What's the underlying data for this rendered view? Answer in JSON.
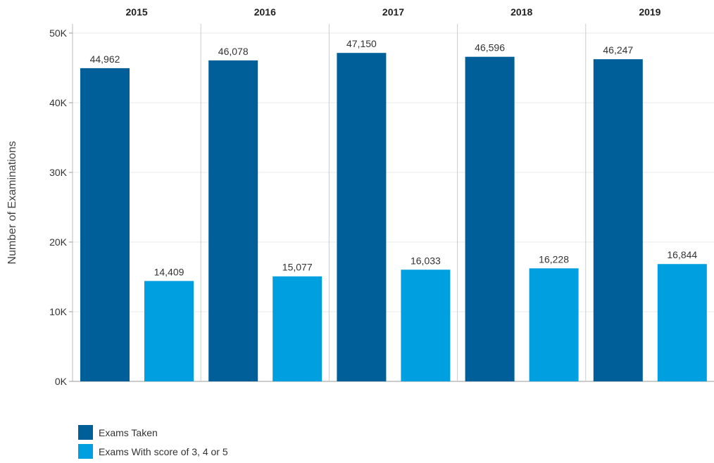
{
  "chart_data": {
    "type": "bar",
    "categories": [
      "2015",
      "2016",
      "2017",
      "2018",
      "2019"
    ],
    "series": [
      {
        "name": "Exams Taken",
        "color": "#005E98",
        "values": [
          44962,
          46078,
          47150,
          46596,
          46247
        ],
        "labels": [
          "44,962",
          "46,078",
          "47,150",
          "46,596",
          "46,247"
        ]
      },
      {
        "name": "Exams With score of 3, 4 or 5",
        "color": "#009FDF",
        "values": [
          14409,
          15077,
          16033,
          16228,
          16844
        ],
        "labels": [
          "14,409",
          "15,077",
          "16,033",
          "16,228",
          "16,844"
        ]
      }
    ],
    "ylabel": "Number of Examinations",
    "ylim": [
      0,
      50000
    ],
    "yticks": [
      0,
      10000,
      20000,
      30000,
      40000,
      50000
    ],
    "ytick_labels": [
      "0K",
      "10K",
      "20K",
      "30K",
      "40K",
      "50K"
    ],
    "grid": true,
    "legend": "bottom-left"
  }
}
